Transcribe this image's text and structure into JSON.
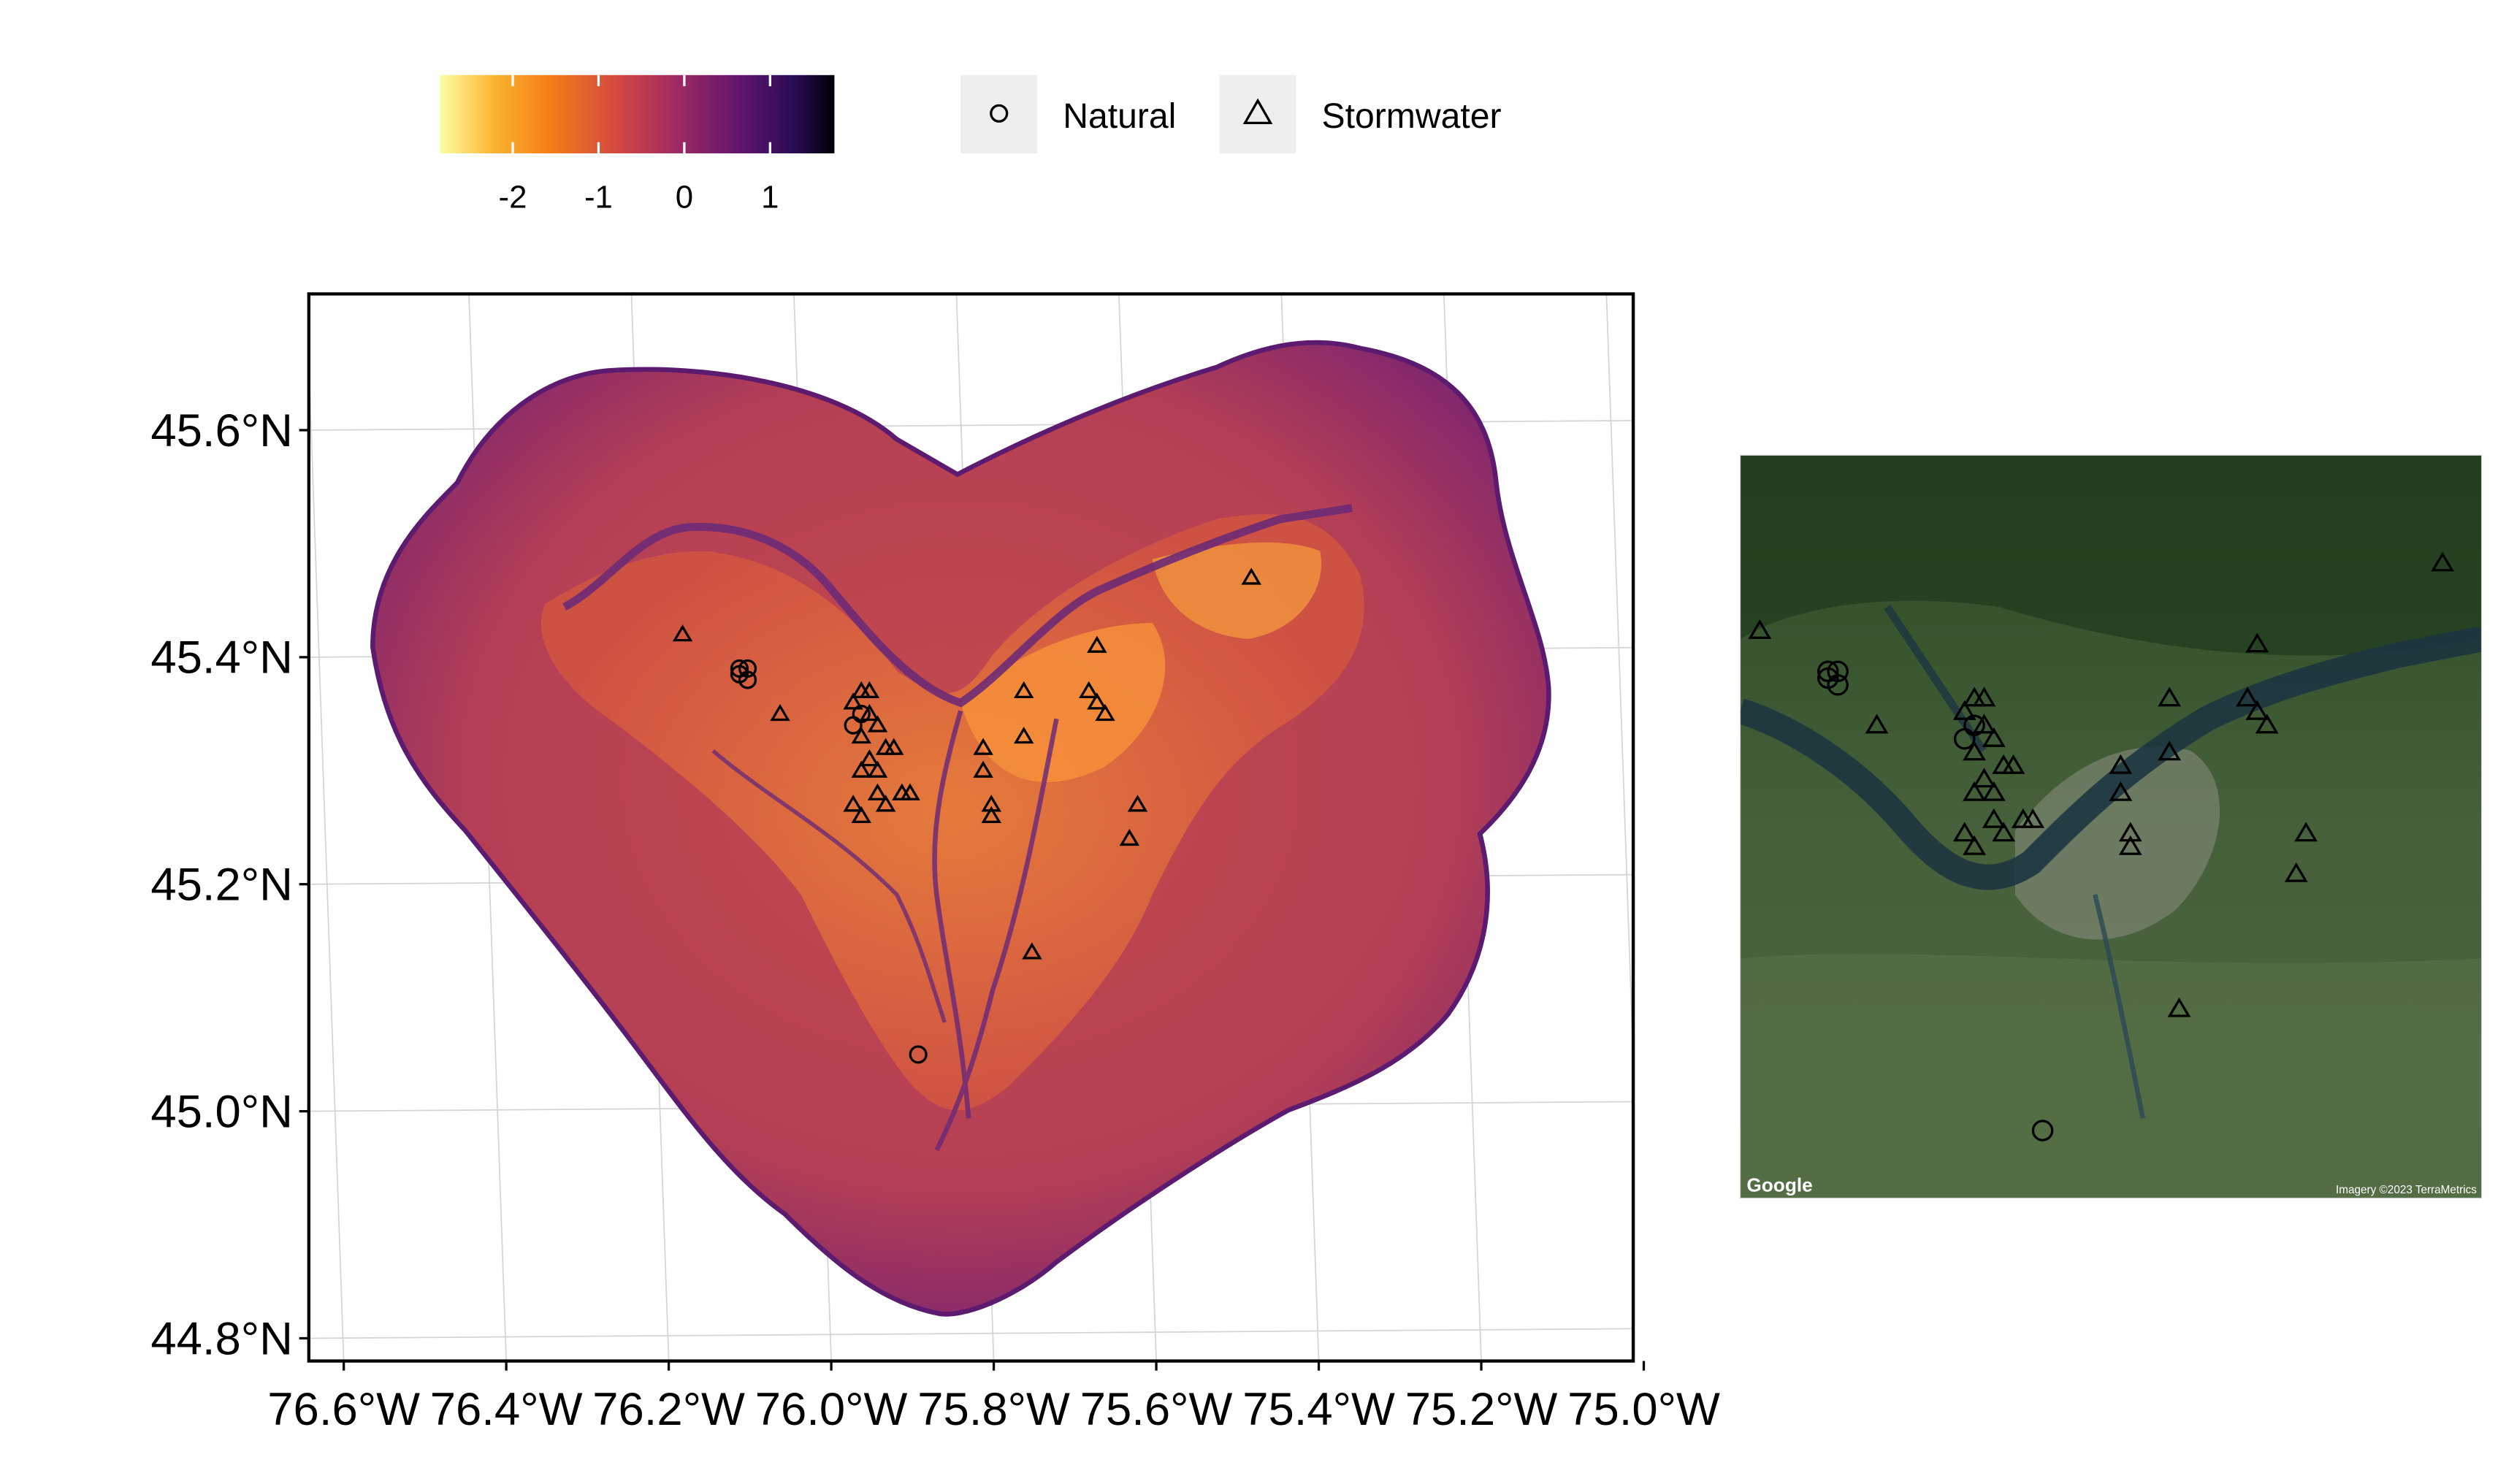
{
  "colorbar": {
    "ticks": [
      "-2",
      "-1",
      "0",
      "1"
    ],
    "tick_values": [
      -2,
      -1,
      0,
      1
    ],
    "range": [
      -2.85,
      1.75
    ],
    "palette": [
      "#fcffa4",
      "#fbb32f",
      "#f57d15",
      "#d44842",
      "#9f2a63",
      "#65156e",
      "#280b54",
      "#000004"
    ]
  },
  "legend": [
    {
      "label": "Natural",
      "shape": "circle-icon"
    },
    {
      "label": "Stormwater",
      "shape": "triangle-icon"
    }
  ],
  "main_map": {
    "x_ticks": [
      "76.6°W",
      "76.4°W",
      "76.2°W",
      "76.0°W",
      "75.8°W",
      "75.6°W",
      "75.4°W",
      "75.2°W",
      "75.0°W"
    ],
    "y_ticks": [
      "45.6°N",
      "45.4°N",
      "45.2°N",
      "45.0°N",
      "44.8°N"
    ],
    "lon_values": [
      -76.6,
      -76.4,
      -76.2,
      -76.0,
      -75.8,
      -75.6,
      -75.4,
      -75.2,
      -75.0
    ],
    "lat_values": [
      45.6,
      45.4,
      45.2,
      45.0,
      44.8
    ],
    "fill_colors": {
      "body": "#c2474e",
      "edge": "#6a1f73",
      "lowland": "#e8712e",
      "bright": "#f7923a",
      "river": "#6d2a75"
    }
  },
  "chart_data": {
    "type": "scatter",
    "xlim": [
      -76.62,
      -74.99
    ],
    "ylim": [
      44.78,
      45.72
    ],
    "grid": true,
    "series": [
      {
        "name": "Natural",
        "points": [
          [
            -76.08,
            45.39
          ],
          [
            -76.09,
            45.39
          ],
          [
            -76.08,
            45.38
          ],
          [
            -76.09,
            45.385
          ],
          [
            -75.95,
            45.34
          ],
          [
            -75.94,
            45.35
          ],
          [
            -75.87,
            45.05
          ]
        ]
      },
      {
        "name": "Stormwater",
        "points": [
          [
            -76.16,
            45.42
          ],
          [
            -76.04,
            45.35
          ],
          [
            -75.95,
            45.36
          ],
          [
            -75.94,
            45.37
          ],
          [
            -75.93,
            45.37
          ],
          [
            -75.93,
            45.35
          ],
          [
            -75.92,
            45.34
          ],
          [
            -75.94,
            45.33
          ],
          [
            -75.93,
            45.31
          ],
          [
            -75.94,
            45.3
          ],
          [
            -75.92,
            45.3
          ],
          [
            -75.91,
            45.32
          ],
          [
            -75.9,
            45.32
          ],
          [
            -75.95,
            45.27
          ],
          [
            -75.94,
            45.26
          ],
          [
            -75.92,
            45.28
          ],
          [
            -75.91,
            45.27
          ],
          [
            -75.89,
            45.28
          ],
          [
            -75.88,
            45.28
          ],
          [
            -75.79,
            45.32
          ],
          [
            -75.79,
            45.3
          ],
          [
            -75.78,
            45.27
          ],
          [
            -75.78,
            45.26
          ],
          [
            -75.74,
            45.37
          ],
          [
            -75.74,
            45.33
          ],
          [
            -75.66,
            45.37
          ],
          [
            -75.65,
            45.36
          ],
          [
            -75.64,
            45.35
          ],
          [
            -75.65,
            45.41
          ],
          [
            -75.6,
            45.27
          ],
          [
            -75.61,
            45.24
          ],
          [
            -75.73,
            45.14
          ],
          [
            -75.46,
            45.47
          ]
        ]
      }
    ]
  },
  "satellite": {
    "google_label": "Google",
    "imagery_label": "Imagery ©2023 TerraMetrics"
  }
}
